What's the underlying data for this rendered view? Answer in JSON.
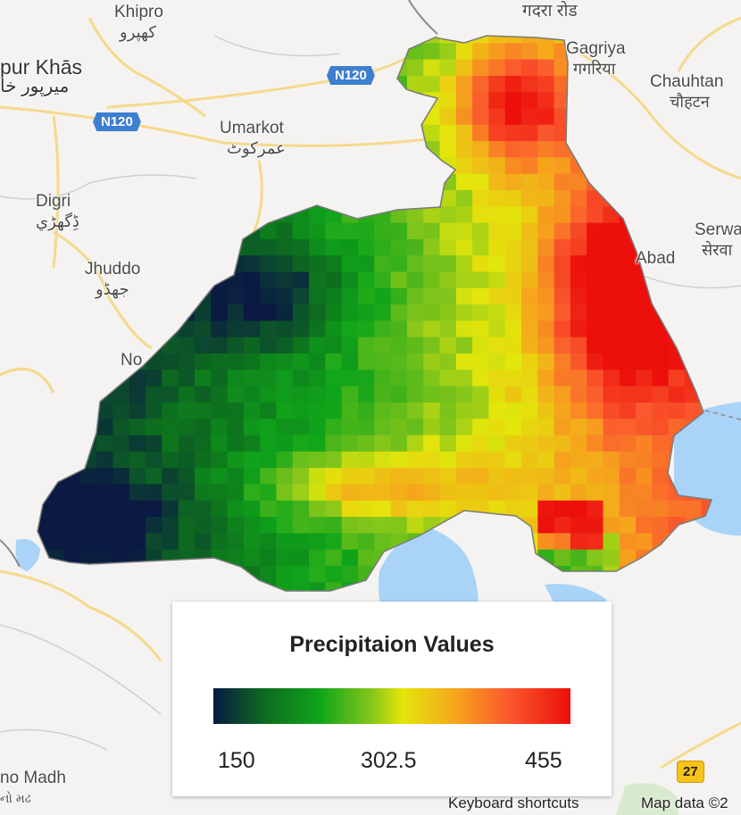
{
  "places": {
    "khipro": {
      "name": "Khipro",
      "native": "کھپرو"
    },
    "mirpur": {
      "name": "pur Khās",
      "native": "میرپور خا"
    },
    "umarkot": {
      "name": "Umarkot",
      "native": "عمرکوٹ"
    },
    "digri": {
      "name": "Digri",
      "native": "ڈِگھڑي"
    },
    "jhuddo": {
      "name": "Jhuddo",
      "native": "جھڈو"
    },
    "nau": {
      "name": "No"
    },
    "gadra": {
      "name": "गदरा रोड"
    },
    "gagriya": {
      "name": "Gagriya",
      "native": "गगरिया"
    },
    "chauhtan": {
      "name": "Chauhtan",
      "native": "चौहटन"
    },
    "serwa": {
      "name": "Serwa",
      "native": "सेरवा"
    },
    "abad": {
      "name": "Abad"
    },
    "madh": {
      "name": "no Madh",
      "native": "નો મઢ"
    }
  },
  "roads": {
    "n120_a": "N120",
    "n120_b": "N120",
    "r27": "27"
  },
  "colors": {
    "ramp": [
      "#0a1a42",
      "#0d6e1e",
      "#10a51a",
      "#8cc81a",
      "#e3e60b",
      "#f6a41c",
      "#fb5b2e",
      "#ec0f0b"
    ],
    "water": "#a9d3f7",
    "land": "#f4f3f1",
    "road": "#f5d98b"
  },
  "legend": {
    "title": "Precipitaion Values",
    "min_label": "150",
    "mid_label": "302.5",
    "max_label": "455",
    "min": 150,
    "max": 455
  },
  "footer": {
    "keyboard": "Keyboard shortcuts",
    "map_data": "Map data ©2"
  }
}
